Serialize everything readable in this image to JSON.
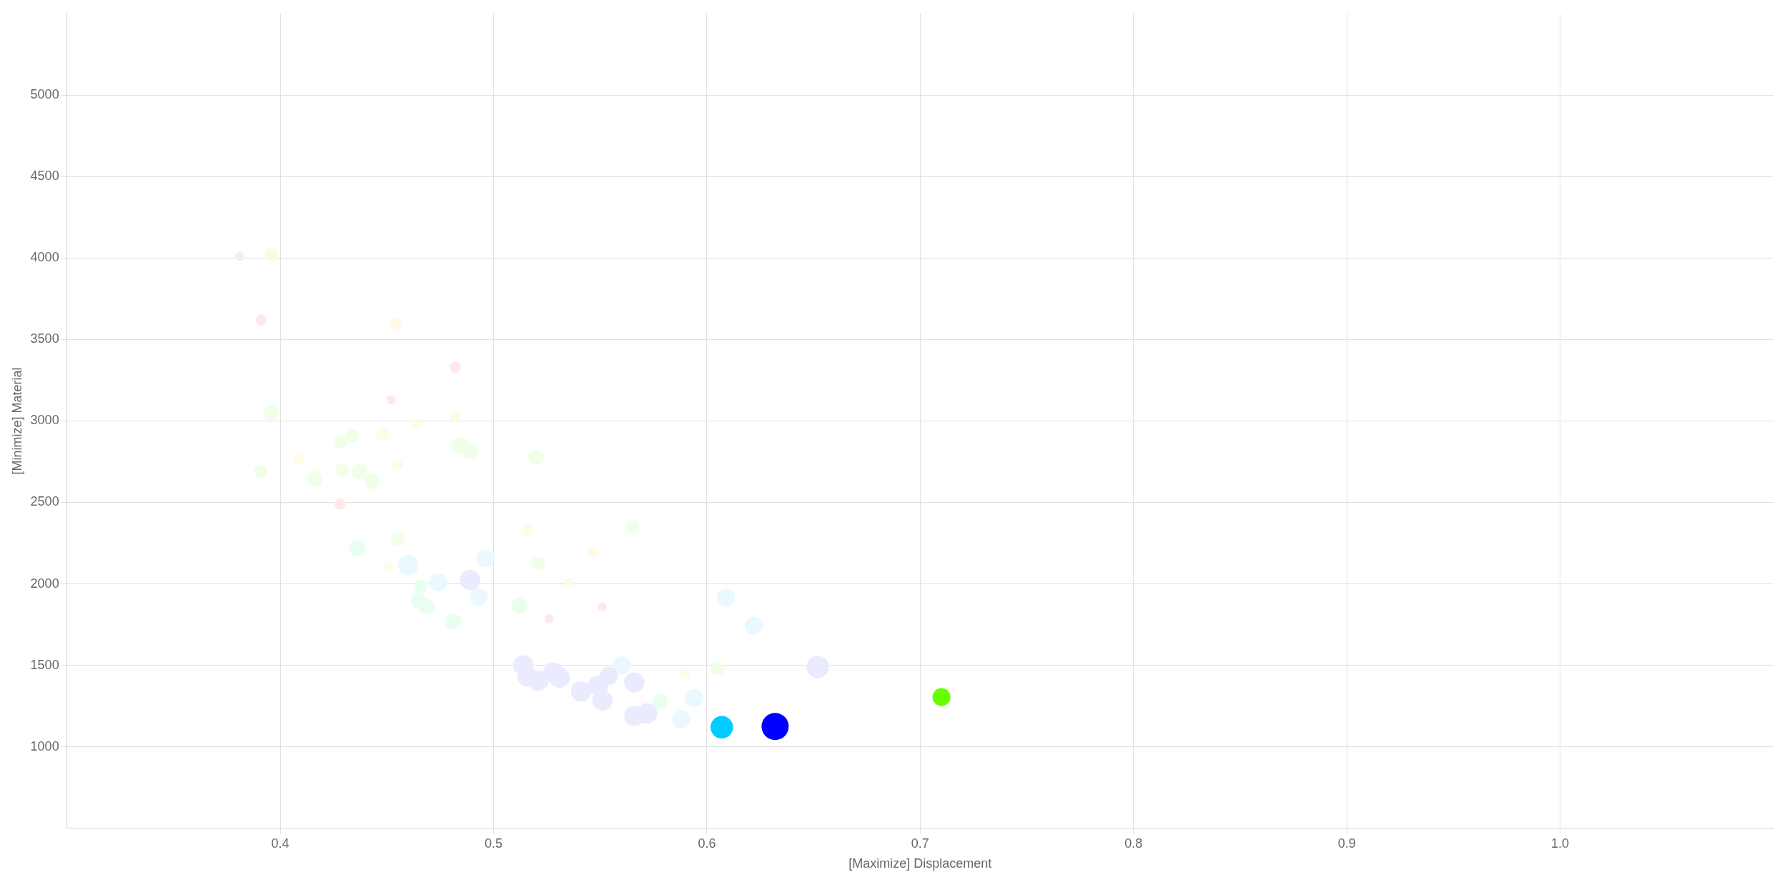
{
  "chart_data": {
    "type": "bubble",
    "xlabel": "[Maximize] Displacement",
    "ylabel": "[Minimize] Material",
    "xlim": [
      0.3,
      1.1
    ],
    "xticks": [
      0.4,
      0.5,
      0.6,
      0.7,
      0.8,
      0.9,
      {
        "value": 1,
        "label": "1.0"
      }
    ],
    "ylim": [
      500,
      5500
    ],
    "yticks": [
      1000,
      1500,
      2000,
      2500,
      3000,
      3500,
      4000,
      4500,
      5000
    ],
    "grid": true,
    "legend": false,
    "marker": "circle",
    "x": [
      0.381,
      0.391,
      0.482,
      0.452,
      0.428,
      0.526,
      0.551,
      0.454,
      0.409,
      0.448,
      0.464,
      0.482,
      0.455,
      0.516,
      0.451,
      0.535,
      0.547,
      0.59,
      0.396,
      0.396,
      0.391,
      0.428,
      0.434,
      0.429,
      0.416,
      0.437,
      0.443,
      0.455,
      0.484,
      0.489,
      0.52,
      0.521,
      0.565,
      0.605,
      0.436,
      0.465,
      0.469,
      0.481,
      0.512,
      0.466,
      0.578,
      0.46,
      0.474,
      0.496,
      0.493,
      0.609,
      0.622,
      0.56,
      0.594,
      0.588,
      0.489,
      0.652,
      0.514,
      0.516,
      0.521,
      0.528,
      0.531,
      0.541,
      0.549,
      0.551,
      0.566,
      0.572,
      0.566,
      0.554,
      0.607,
      0.632,
      0.71
    ],
    "values": [
      4010,
      3620,
      3330,
      3130,
      2490,
      1785,
      1860,
      3590,
      2770,
      2920,
      2980,
      3030,
      2730,
      2330,
      2105,
      2010,
      2190,
      1450,
      4020,
      3050,
      2690,
      2870,
      2905,
      2700,
      2645,
      2690,
      2630,
      2275,
      2850,
      2815,
      2775,
      2125,
      2350,
      1480,
      2220,
      1895,
      1860,
      1770,
      1865,
      1985,
      1280,
      2115,
      2010,
      2155,
      1920,
      1915,
      1745,
      1500,
      1300,
      1170,
      2025,
      1490,
      1500,
      1430,
      1405,
      1455,
      1425,
      1340,
      1375,
      1285,
      1190,
      1205,
      1395,
      1435,
      1120,
      1125,
      1305
    ],
    "sizes": [
      0.11,
      0.17,
      0.17,
      0.11,
      0.17,
      0.11,
      0.11,
      0.25,
      0.17,
      0.25,
      0.17,
      0.17,
      0.17,
      0.17,
      0.11,
      0.11,
      0.17,
      0.17,
      0.25,
      0.34,
      0.25,
      0.25,
      0.25,
      0.25,
      0.34,
      0.34,
      0.34,
      0.25,
      0.34,
      0.34,
      0.34,
      0.25,
      0.25,
      0.25,
      0.34,
      0.34,
      0.34,
      0.34,
      0.34,
      0.25,
      0.34,
      0.56,
      0.44,
      0.44,
      0.44,
      0.44,
      0.44,
      0.44,
      0.44,
      0.44,
      0.56,
      0.69,
      0.56,
      0.56,
      0.56,
      0.56,
      0.56,
      0.56,
      0.56,
      0.56,
      0.56,
      0.56,
      0.56,
      0.44,
      0.69,
      1,
      0.44
    ],
    "colors": [
      "#ffe8e8",
      "#ffe8e8",
      "#ffe8e8",
      "#ffe8e8",
      "#ffe8e8",
      "#ffe8e8",
      "#ffe8e8",
      "#fffbe6",
      "#fffbe6",
      "#fffbe6",
      "#fffbe6",
      "#fffbe6",
      "#fffbe6",
      "#fffbe6",
      "#fffbe6",
      "#fffbe6",
      "#fffbe6",
      "#fffbe6",
      "#f1ffe8",
      "#f1ffe8",
      "#f1ffe8",
      "#f1ffe8",
      "#f1ffe8",
      "#f1ffe8",
      "#f1ffe8",
      "#f1ffe8",
      "#f1ffe8",
      "#f1ffe8",
      "#f1ffe8",
      "#f1ffe8",
      "#f1ffe8",
      "#f1ffe8",
      "#f1ffe8",
      "#f1ffe8",
      "#e8fff0",
      "#e8fff0",
      "#e8fff0",
      "#e8fff0",
      "#e8fff0",
      "#e8fff0",
      "#e8fff0",
      "#eaf8ff",
      "#eaf8ff",
      "#eaf8ff",
      "#eaf8ff",
      "#eaf8ff",
      "#eaf8ff",
      "#eaf8ff",
      "#eaf8ff",
      "#eaf8ff",
      "#ebebff",
      "#ebebff",
      "#ebebff",
      "#ebebff",
      "#ebebff",
      "#ebebff",
      "#ebebff",
      "#ebebff",
      "#ebebff",
      "#ebebff",
      "#ebebff",
      "#ebebff",
      "#ebebff",
      "#ebebff",
      "#00ccff",
      "#0000ff",
      "#66ff00"
    ]
  }
}
